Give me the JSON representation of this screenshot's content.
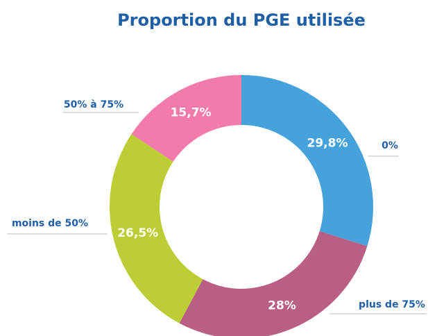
{
  "chart_data": {
    "type": "donut",
    "title": "Proportion du PGE utilisée",
    "categories": [
      "0%",
      "plus de 75%",
      "moins de 50%",
      "50% à 75%"
    ],
    "values": [
      29.8,
      28,
      26.5,
      15.7
    ],
    "value_labels": [
      "29,8%",
      "28%",
      "26,5%",
      "15,7%"
    ],
    "colors": [
      "#45a2db",
      "#b95f83",
      "#bccd35",
      "#f27bac"
    ]
  }
}
